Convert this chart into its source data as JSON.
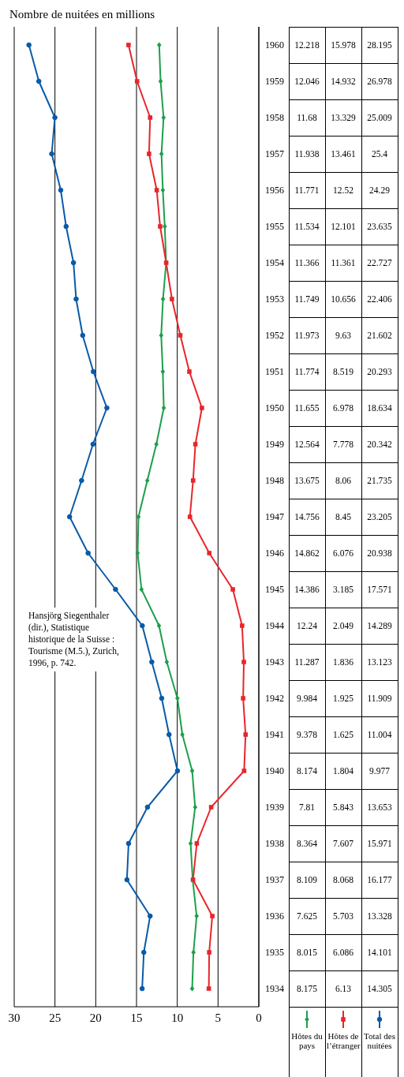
{
  "chart_data": {
    "type": "line",
    "orientation": "horizontal",
    "xlabel": "Nombre de nuitées en millions",
    "annotations": [
      "Hansjörg Siegenthaler (dir.), Statistique historique de la Suisse : Tourisme (M.5.), Zurich, 1996, p. 742."
    ],
    "categories": [
      "1960",
      "1959",
      "1958",
      "1957",
      "1956",
      "1955",
      "1954",
      "1953",
      "1952",
      "1951",
      "1950",
      "1949",
      "1948",
      "1947",
      "1946",
      "1945",
      "1944",
      "1943",
      "1942",
      "1941",
      "1940",
      "1939",
      "1938",
      "1937",
      "1936",
      "1935",
      "1934"
    ],
    "series": [
      {
        "name": "Hôtes du pays",
        "color": "#1ca04a",
        "marker": "diamond",
        "values": [
          12.218,
          12.046,
          11.68,
          11.938,
          11.771,
          11.534,
          11.366,
          11.749,
          11.973,
          11.774,
          11.655,
          12.564,
          13.675,
          14.756,
          14.862,
          14.386,
          12.24,
          11.287,
          9.984,
          9.378,
          8.174,
          7.81,
          8.364,
          8.109,
          7.625,
          8.015,
          8.175
        ]
      },
      {
        "name": "Hôtes de l’étranger",
        "color": "#e8262a",
        "marker": "square",
        "values": [
          15.978,
          14.932,
          13.329,
          13.461,
          12.52,
          12.101,
          11.361,
          10.656,
          9.63,
          8.519,
          6.978,
          7.778,
          8.06,
          8.45,
          6.076,
          3.185,
          2.049,
          1.836,
          1.925,
          1.625,
          1.804,
          5.843,
          7.607,
          8.068,
          5.703,
          6.086,
          6.13
        ]
      },
      {
        "name": "Total des nuitées",
        "color": "#0a5aa8",
        "marker": "circle",
        "values": [
          28.195,
          26.978,
          25.009,
          25.4,
          24.29,
          23.635,
          22.727,
          22.406,
          21.602,
          20.293,
          18.634,
          20.342,
          21.735,
          23.205,
          20.938,
          17.571,
          14.289,
          13.123,
          11.909,
          11.004,
          9.977,
          13.653,
          15.971,
          16.177,
          13.328,
          14.101,
          14.305
        ]
      }
    ],
    "xlim": [
      30,
      0
    ],
    "xticks": [
      0,
      5,
      10,
      15,
      20,
      25,
      30
    ],
    "grid": "x",
    "legend": "bottom",
    "data_labels": true
  }
}
